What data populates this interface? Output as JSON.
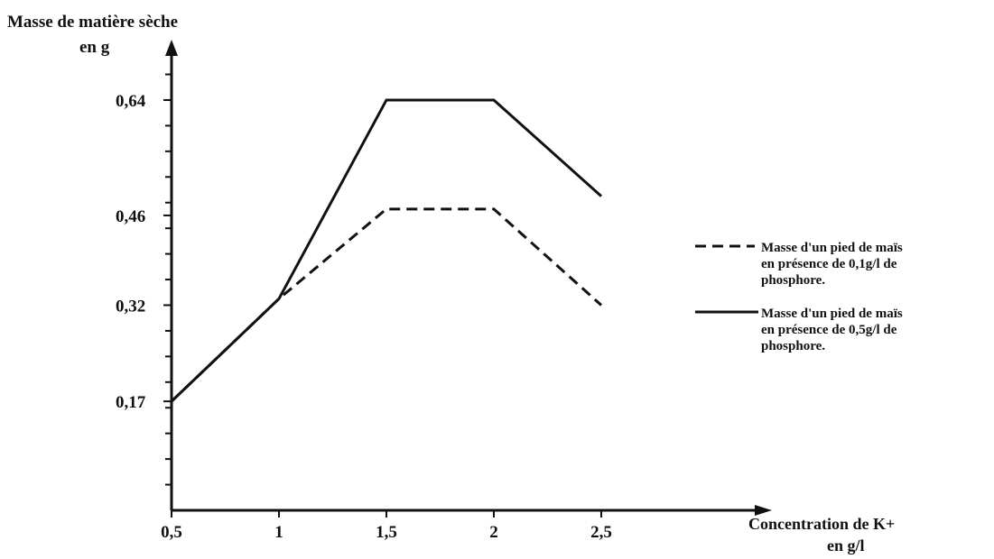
{
  "chart_data": {
    "type": "line",
    "ylabel_lines": [
      "Masse de matière sèche",
      "en g"
    ],
    "xlabel_lines": [
      "Concentration de K+",
      "en g/l"
    ],
    "x_ticks": [
      "0,5",
      "1",
      "1,5",
      "2",
      "2,5"
    ],
    "y_ticks": [
      "0,17",
      "0,32",
      "0,46",
      "0,64"
    ],
    "x": [
      0.5,
      1,
      1.5,
      2,
      2.5
    ],
    "xlim": [
      0.5,
      3.0
    ],
    "ylim": [
      0,
      0.71
    ],
    "grid": false,
    "legend_position": "right",
    "series": [
      {
        "name_lines": [
          "Masse d'un pied de maïs",
          "en présence de 0,1g/l de",
          "phosphore."
        ],
        "values": [
          0.17,
          0.33,
          0.47,
          0.47,
          0.32
        ],
        "style": "dashed",
        "color": "#111111"
      },
      {
        "name_lines": [
          "Masse d'un pied de maïs",
          "en présence de 0,5g/l de",
          "phosphore."
        ],
        "values": [
          0.17,
          0.33,
          0.64,
          0.64,
          0.49
        ],
        "style": "solid",
        "color": "#111111"
      }
    ]
  }
}
